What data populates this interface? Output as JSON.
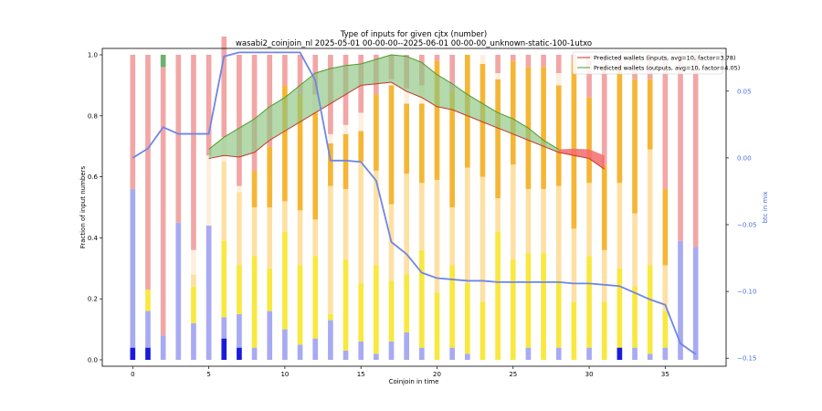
{
  "chart_data": {
    "type": "bar",
    "title": "Type of inputs for given cjtx (number)",
    "subtitle": "wasabi2_coinjoin_nl 2025-05-01 00-00-00--2025-06-01 00-00-00_unknown-static-100-1utxo",
    "xlabel": "Coinjoin in time",
    "ylabel": "Fraction of input numbers",
    "ylabel_right": "btc in mix",
    "xlim": [
      -2,
      39
    ],
    "ylim": [
      0,
      1
    ],
    "y2lim": [
      -0.156,
      0.082
    ],
    "xticks": [
      "0",
      "5",
      "10",
      "15",
      "20",
      "25",
      "30",
      "35"
    ],
    "yticks": [
      "0.0",
      "0.2",
      "0.4",
      "0.6",
      "0.8",
      "1.0"
    ],
    "y2ticks": [
      "0.05",
      "0.00",
      "−0.05",
      "−0.10",
      "−0.15"
    ],
    "grid": false,
    "legend_position": "top-right",
    "stack_colors": [
      "#1a1adb",
      "#a8aaf2",
      "#f8e840",
      "#fde1a4",
      "#f5b636",
      "#fdf0e0",
      "#f2a6a6",
      "#6db06d"
    ],
    "bars": [
      [
        0.04,
        0.52,
        0.0,
        0.0,
        0.0,
        0.0,
        0.44,
        0.0
      ],
      [
        0.04,
        0.12,
        0.07,
        0.0,
        0.0,
        0.0,
        0.77,
        0.0
      ],
      [
        0.0,
        0.08,
        0.0,
        0.0,
        0.0,
        0.0,
        0.88,
        0.04
      ],
      [
        0.0,
        0.45,
        0.0,
        0.0,
        0.0,
        0.0,
        0.55,
        0.0
      ],
      [
        0.0,
        0.12,
        0.12,
        0.04,
        0.0,
        0.08,
        0.64,
        0.0
      ],
      [
        0.0,
        0.44,
        0.0,
        0.0,
        0.0,
        0.23,
        0.33,
        0.0
      ],
      [
        0.07,
        0.07,
        0.25,
        0.26,
        0.0,
        0.08,
        0.33,
        0.0
      ],
      [
        0.04,
        0.11,
        0.16,
        0.24,
        0.0,
        0.02,
        0.43,
        0.0
      ],
      [
        0.0,
        0.04,
        0.3,
        0.16,
        0.12,
        0.0,
        0.38,
        0.0
      ],
      [
        0.0,
        0.16,
        0.14,
        0.2,
        0.2,
        0.0,
        0.3,
        0.0
      ],
      [
        0.0,
        0.1,
        0.32,
        0.1,
        0.38,
        0.0,
        0.1,
        0.0
      ],
      [
        0.0,
        0.05,
        0.26,
        0.18,
        0.38,
        0.0,
        0.13,
        0.0
      ],
      [
        0.0,
        0.07,
        0.27,
        0.12,
        0.35,
        0.06,
        0.13,
        0.0
      ],
      [
        0.0,
        0.13,
        0.02,
        0.42,
        0.14,
        0.03,
        0.26,
        0.0
      ],
      [
        0.0,
        0.03,
        0.3,
        0.23,
        0.18,
        0.03,
        0.23,
        0.0
      ],
      [
        0.0,
        0.06,
        0.19,
        0.4,
        0.1,
        0.06,
        0.19,
        0.0
      ],
      [
        0.0,
        0.02,
        0.29,
        0.31,
        0.25,
        0.0,
        0.13,
        0.0
      ],
      [
        0.0,
        0.06,
        0.2,
        0.25,
        0.39,
        0.02,
        0.08,
        0.0
      ],
      [
        0.0,
        0.09,
        0.19,
        0.33,
        0.23,
        0.05,
        0.11,
        0.0
      ],
      [
        0.0,
        0.04,
        0.32,
        0.22,
        0.26,
        0.06,
        0.1,
        0.0
      ],
      [
        0.0,
        0.0,
        0.22,
        0.37,
        0.39,
        0.0,
        0.02,
        0.0
      ],
      [
        0.0,
        0.04,
        0.27,
        0.19,
        0.38,
        0.0,
        0.12,
        0.0
      ],
      [
        0.0,
        0.02,
        0.23,
        0.38,
        0.37,
        0.0,
        0.0,
        0.0
      ],
      [
        0.0,
        0.0,
        0.19,
        0.41,
        0.37,
        0.03,
        0.0,
        0.0
      ],
      [
        0.0,
        0.0,
        0.42,
        0.11,
        0.39,
        0.02,
        0.06,
        0.0
      ],
      [
        0.0,
        0.0,
        0.33,
        0.31,
        0.34,
        0.0,
        0.02,
        0.0
      ],
      [
        0.0,
        0.04,
        0.31,
        0.21,
        0.4,
        0.0,
        0.04,
        0.0
      ],
      [
        0.0,
        0.0,
        0.35,
        0.21,
        0.4,
        0.0,
        0.04,
        0.0
      ],
      [
        0.0,
        0.04,
        0.22,
        0.31,
        0.33,
        0.04,
        0.06,
        0.0
      ],
      [
        0.0,
        0.0,
        0.19,
        0.24,
        0.55,
        0.0,
        0.02,
        0.0
      ],
      [
        0.0,
        0.04,
        0.3,
        0.24,
        0.28,
        0.0,
        0.14,
        0.0
      ],
      [
        0.0,
        0.0,
        0.19,
        0.17,
        0.28,
        0.0,
        0.36,
        0.0
      ],
      [
        0.04,
        0.0,
        0.26,
        0.28,
        0.38,
        0.0,
        0.04,
        0.0
      ],
      [
        0.0,
        0.04,
        0.2,
        0.24,
        0.44,
        0.0,
        0.08,
        0.0
      ],
      [
        0.0,
        0.02,
        0.29,
        0.38,
        0.23,
        0.0,
        0.08,
        0.0
      ],
      [
        0.0,
        0.04,
        0.12,
        0.15,
        0.25,
        0.0,
        0.44,
        0.0
      ],
      [
        0.0,
        0.39,
        0.0,
        0.0,
        0.0,
        0.0,
        0.61,
        0.0
      ],
      [
        0.0,
        0.37,
        0.0,
        0.0,
        0.0,
        0.0,
        0.63,
        0.0
      ]
    ],
    "series": [
      {
        "name": "Predicted wallets (inputs, avg=10, factor=3.78)",
        "color": "#c0392b",
        "x": [
          5,
          6,
          7,
          8,
          9,
          10,
          11,
          12,
          13,
          14,
          15,
          16,
          17,
          18,
          19,
          20,
          21,
          22,
          23,
          24,
          25,
          26,
          27,
          28,
          29,
          30,
          31
        ],
        "y": [
          0.66,
          0.67,
          0.665,
          0.68,
          0.72,
          0.75,
          0.78,
          0.81,
          0.84,
          0.87,
          0.9,
          0.905,
          0.91,
          0.88,
          0.86,
          0.83,
          0.82,
          0.8,
          0.78,
          0.76,
          0.74,
          0.72,
          0.7,
          0.68,
          0.67,
          0.66,
          0.625
        ]
      },
      {
        "name": "Predicted wallets (outputs, avg=10, factor=4.05)",
        "color": "#4e9a2e",
        "x": [
          5,
          6,
          7,
          8,
          9,
          10,
          11,
          12,
          13,
          14,
          15,
          16,
          17,
          18,
          19,
          20,
          21,
          22,
          23,
          24,
          25,
          26,
          27,
          28
        ],
        "y": [
          0.69,
          0.73,
          0.76,
          0.79,
          0.83,
          0.86,
          0.9,
          0.94,
          0.955,
          0.965,
          0.97,
          0.985,
          1.0,
          0.995,
          0.975,
          0.935,
          0.905,
          0.87,
          0.84,
          0.81,
          0.79,
          0.76,
          0.72,
          0.69
        ]
      },
      {
        "name": "btc in mix",
        "color": "#6f86e6",
        "x": [
          0,
          1,
          2,
          3,
          4,
          5,
          6,
          7,
          8,
          9,
          10,
          11,
          12,
          13,
          14,
          15,
          16,
          17,
          18,
          19,
          20,
          21,
          22,
          23,
          24,
          25,
          26,
          27,
          28,
          29,
          30,
          31,
          32,
          33,
          34,
          35,
          36,
          37
        ],
        "y": [
          0.0,
          0.007,
          0.023,
          0.018,
          0.018,
          0.018,
          0.076,
          0.079,
          0.079,
          0.079,
          0.079,
          0.079,
          0.058,
          -0.002,
          -0.002,
          -0.003,
          -0.017,
          -0.063,
          -0.072,
          -0.086,
          -0.09,
          -0.091,
          -0.092,
          -0.092,
          -0.093,
          -0.093,
          -0.093,
          -0.093,
          -0.093,
          -0.094,
          -0.094,
          -0.095,
          -0.096,
          -0.101,
          -0.106,
          -0.11,
          -0.139,
          -0.147
        ]
      }
    ]
  }
}
